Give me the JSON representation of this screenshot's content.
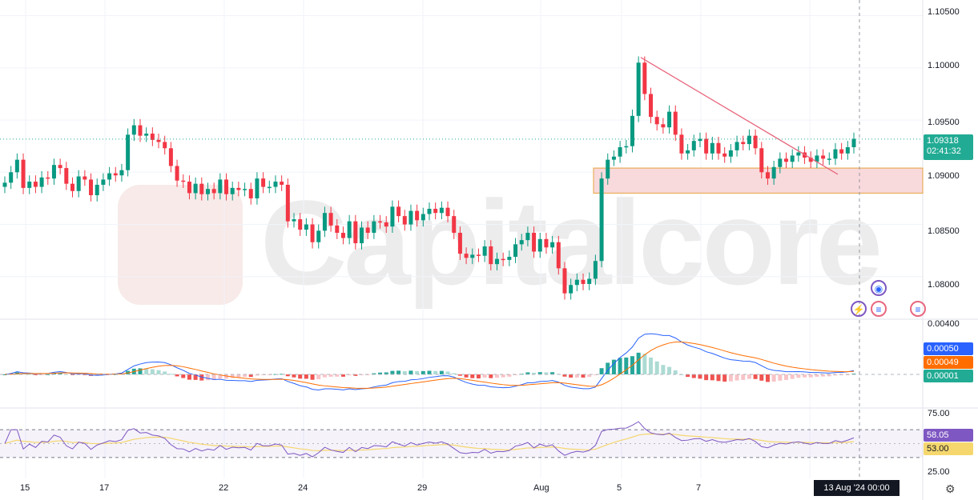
{
  "watermark": {
    "text": "Capitalcore"
  },
  "chart_data": {
    "type": "candlestick",
    "title": "",
    "price_axis": {
      "ticks": [
        "1.10500",
        "1.10000",
        "1.09500",
        "1.09000",
        "1.08500",
        "1.08000"
      ],
      "ylim": [
        1.076,
        1.1065
      ]
    },
    "current_price": {
      "value": "1.09318",
      "countdown": "02:41:32",
      "color": "#22ab94"
    },
    "x_axis": {
      "labels": [
        "15",
        "17",
        "22",
        "24",
        "29",
        "Aug",
        "5",
        "7"
      ]
    },
    "cursor_date": "13 Aug '24  00:00",
    "support_zone": {
      "low": 1.088,
      "high": 1.0904,
      "fill": "#f8d3d6",
      "border": "#e6a23c"
    },
    "trendline": {
      "from": [
        1.101
      ],
      "to": [
        1.0898
      ],
      "color": "#e8677e"
    },
    "candles_close": [
      1.089,
      1.09,
      1.0912,
      1.0885,
      1.0891,
      1.0886,
      1.0895,
      1.0894,
      1.0907,
      1.0904,
      1.0889,
      1.0882,
      1.0896,
      1.0893,
      1.0878,
      1.0888,
      1.0893,
      1.0899,
      1.0897,
      1.0902,
      1.0936,
      1.0945,
      1.0935,
      1.0937,
      1.0931,
      1.0929,
      1.0923,
      1.0906,
      1.0892,
      1.0891,
      1.088,
      1.0889,
      1.0879,
      1.0884,
      1.088,
      1.0893,
      1.0879,
      1.0885,
      1.0883,
      1.0884,
      1.0875,
      1.0894,
      1.0886,
      1.0886,
      1.0891,
      1.0888,
      1.0853,
      1.0855,
      1.0845,
      1.085,
      1.0833,
      1.0844,
      1.0861,
      1.0849,
      1.0842,
      1.0837,
      1.0853,
      1.0832,
      1.0847,
      1.0842,
      1.0853,
      1.0852,
      1.0848,
      1.0867,
      1.0858,
      1.085,
      1.0863,
      1.0854,
      1.086,
      1.0865,
      1.0861,
      1.0866,
      1.0858,
      1.0842,
      1.0822,
      1.0818,
      1.0821,
      1.082,
      1.0829,
      1.0812,
      1.0817,
      1.0816,
      1.0819,
      1.0831,
      1.0835,
      1.0842,
      1.0824,
      1.0836,
      1.0828,
      1.0833,
      1.0808,
      1.0784,
      1.0792,
      1.0797,
      1.0793,
      1.0798,
      1.0815,
      1.0894,
      1.0912,
      1.0915,
      1.0924,
      1.0925,
      1.0954,
      1.1005,
      1.0975,
      1.0953,
      1.0946,
      1.0943,
      1.0958,
      1.0936,
      1.0918,
      1.0921,
      1.093,
      1.0932,
      1.0918,
      1.0928,
      1.0918,
      1.0915,
      1.0921,
      1.0929,
      1.0927,
      1.0935,
      1.0923,
      1.09,
      1.0894,
      1.0905,
      1.0913,
      1.091,
      1.0916,
      1.0919,
      1.0914,
      1.091,
      1.0916,
      1.0913,
      1.0913,
      1.0922,
      1.0918,
      1.0924,
      1.0932
    ],
    "macd": {
      "values": [
        "0.00050",
        "0.00049",
        "0.00001"
      ],
      "macd_color": "#2962ff",
      "signal_color": "#ff6d00"
    },
    "rsi": {
      "ticks": [
        "75.00",
        "25.00"
      ],
      "value": "58.05",
      "ma_value": "53.00",
      "line_color": "#7e57c2",
      "ma_color": "#f5d76e"
    }
  }
}
